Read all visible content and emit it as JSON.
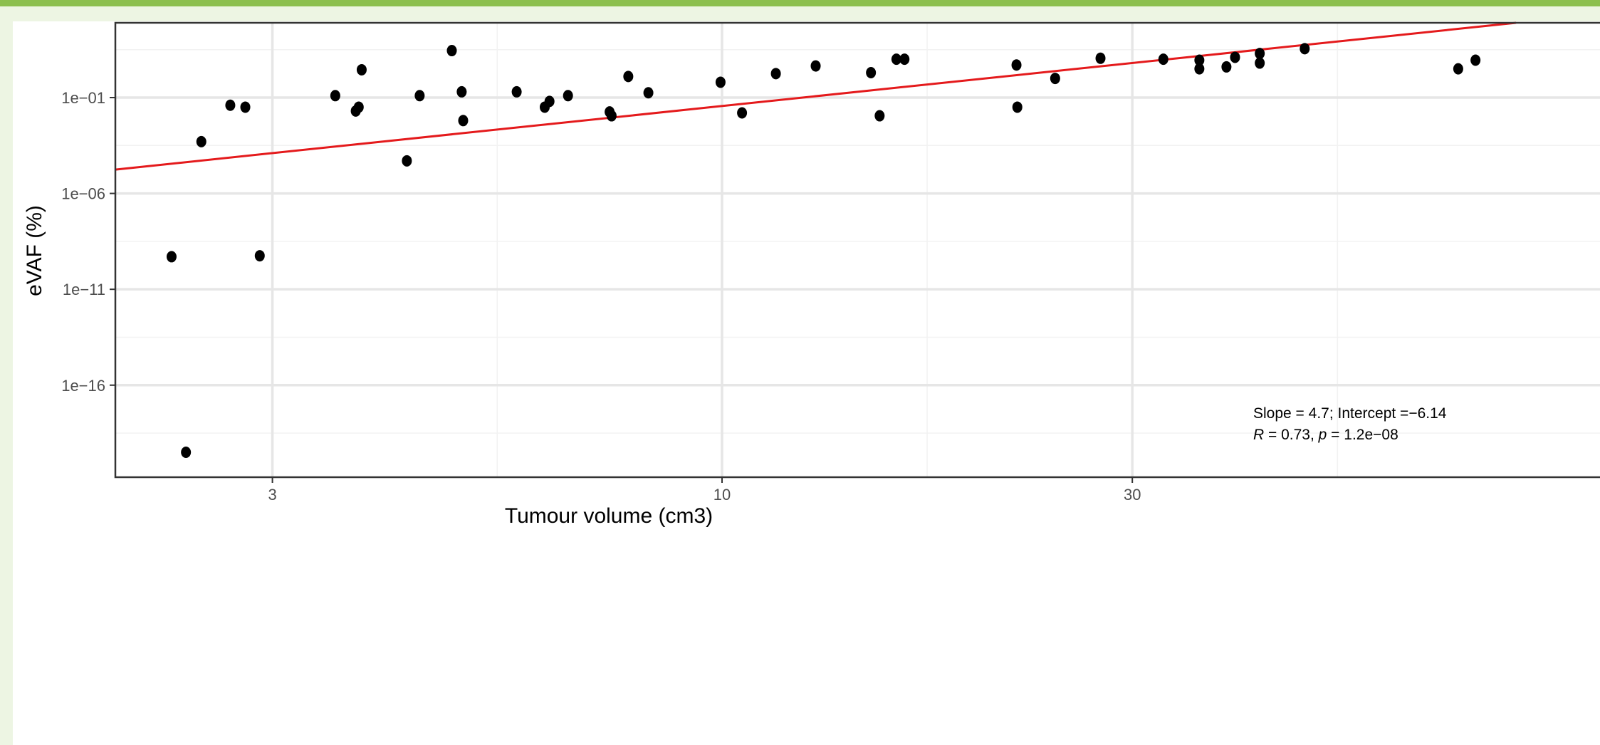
{
  "colors": {
    "page_background": "#edf5e3",
    "top_band": "#8cbf4e",
    "panel_background": "#ffffff",
    "grid_major": "#e6e6e6",
    "grid_minor": "#f2f2f2",
    "points": "#000000",
    "fit_line": "#e41a1c"
  },
  "chart_data": {
    "type": "scatter",
    "xlabel": "Tumour volume (cm3)",
    "ylabel": "eVAF (%)",
    "x_scale": "log10",
    "y_scale": "log10",
    "xlim": [
      1.97,
      108
    ],
    "ylim_log10": [
      -20.8,
      2.9
    ],
    "x_ticks": [
      3,
      10,
      30
    ],
    "x_tick_labels": [
      "3",
      "10",
      "30"
    ],
    "y_ticks_log10": [
      -1,
      -6,
      -11,
      -16
    ],
    "y_tick_labels": [
      "1e−01",
      "1e−06",
      "1e−11",
      "1e−16"
    ],
    "grid": true,
    "regression_line": {
      "slope": 4.7,
      "intercept": -6.14,
      "note": "log10(eVAF) = -6.14 + 4.7 * log10(volume)"
    },
    "annotations": {
      "line1": "Slope = 4.7; Intercept =−6.14",
      "line2_R": "R",
      "line2_R_val": " = 0.73, ",
      "line2_p": "p",
      "line2_p_val": " = 1.2e−08"
    },
    "points": [
      {
        "x": 2.29,
        "y_log10": -9.3
      },
      {
        "x": 2.38,
        "y_log10": -19.5
      },
      {
        "x": 2.48,
        "y_log10": -3.3
      },
      {
        "x": 2.68,
        "y_log10": -1.4
      },
      {
        "x": 2.79,
        "y_log10": -1.5
      },
      {
        "x": 2.9,
        "y_log10": -9.25
      },
      {
        "x": 3.55,
        "y_log10": -0.9
      },
      {
        "x": 3.75,
        "y_log10": -1.7
      },
      {
        "x": 3.78,
        "y_log10": -1.5
      },
      {
        "x": 3.81,
        "y_log10": 0.45
      },
      {
        "x": 4.3,
        "y_log10": -4.3
      },
      {
        "x": 4.45,
        "y_log10": -0.9
      },
      {
        "x": 4.85,
        "y_log10": 1.45
      },
      {
        "x": 4.98,
        "y_log10": -0.7
      },
      {
        "x": 5.0,
        "y_log10": -2.2
      },
      {
        "x": 5.77,
        "y_log10": -0.7
      },
      {
        "x": 6.22,
        "y_log10": -1.5
      },
      {
        "x": 6.3,
        "y_log10": -1.2
      },
      {
        "x": 6.62,
        "y_log10": -0.9
      },
      {
        "x": 7.4,
        "y_log10": -1.75
      },
      {
        "x": 7.44,
        "y_log10": -1.95
      },
      {
        "x": 7.78,
        "y_log10": 0.1
      },
      {
        "x": 8.21,
        "y_log10": -0.75
      },
      {
        "x": 9.96,
        "y_log10": -0.2
      },
      {
        "x": 10.55,
        "y_log10": -1.8
      },
      {
        "x": 11.55,
        "y_log10": 0.25
      },
      {
        "x": 12.85,
        "y_log10": 0.65
      },
      {
        "x": 14.9,
        "y_log10": 0.3
      },
      {
        "x": 15.25,
        "y_log10": -1.95
      },
      {
        "x": 15.95,
        "y_log10": 1.0
      },
      {
        "x": 16.3,
        "y_log10": 1.0
      },
      {
        "x": 22.0,
        "y_log10": 0.7
      },
      {
        "x": 22.05,
        "y_log10": -1.5
      },
      {
        "x": 24.4,
        "y_log10": 0.0
      },
      {
        "x": 27.55,
        "y_log10": 1.05
      },
      {
        "x": 32.6,
        "y_log10": 1.0
      },
      {
        "x": 35.9,
        "y_log10": 0.95
      },
      {
        "x": 35.9,
        "y_log10": 0.5
      },
      {
        "x": 38.6,
        "y_log10": 0.6
      },
      {
        "x": 39.5,
        "y_log10": 1.1
      },
      {
        "x": 42.2,
        "y_log10": 1.3
      },
      {
        "x": 42.2,
        "y_log10": 0.8
      },
      {
        "x": 47.6,
        "y_log10": 1.55
      },
      {
        "x": 71.8,
        "y_log10": 0.5
      },
      {
        "x": 75.2,
        "y_log10": 0.95
      }
    ]
  }
}
